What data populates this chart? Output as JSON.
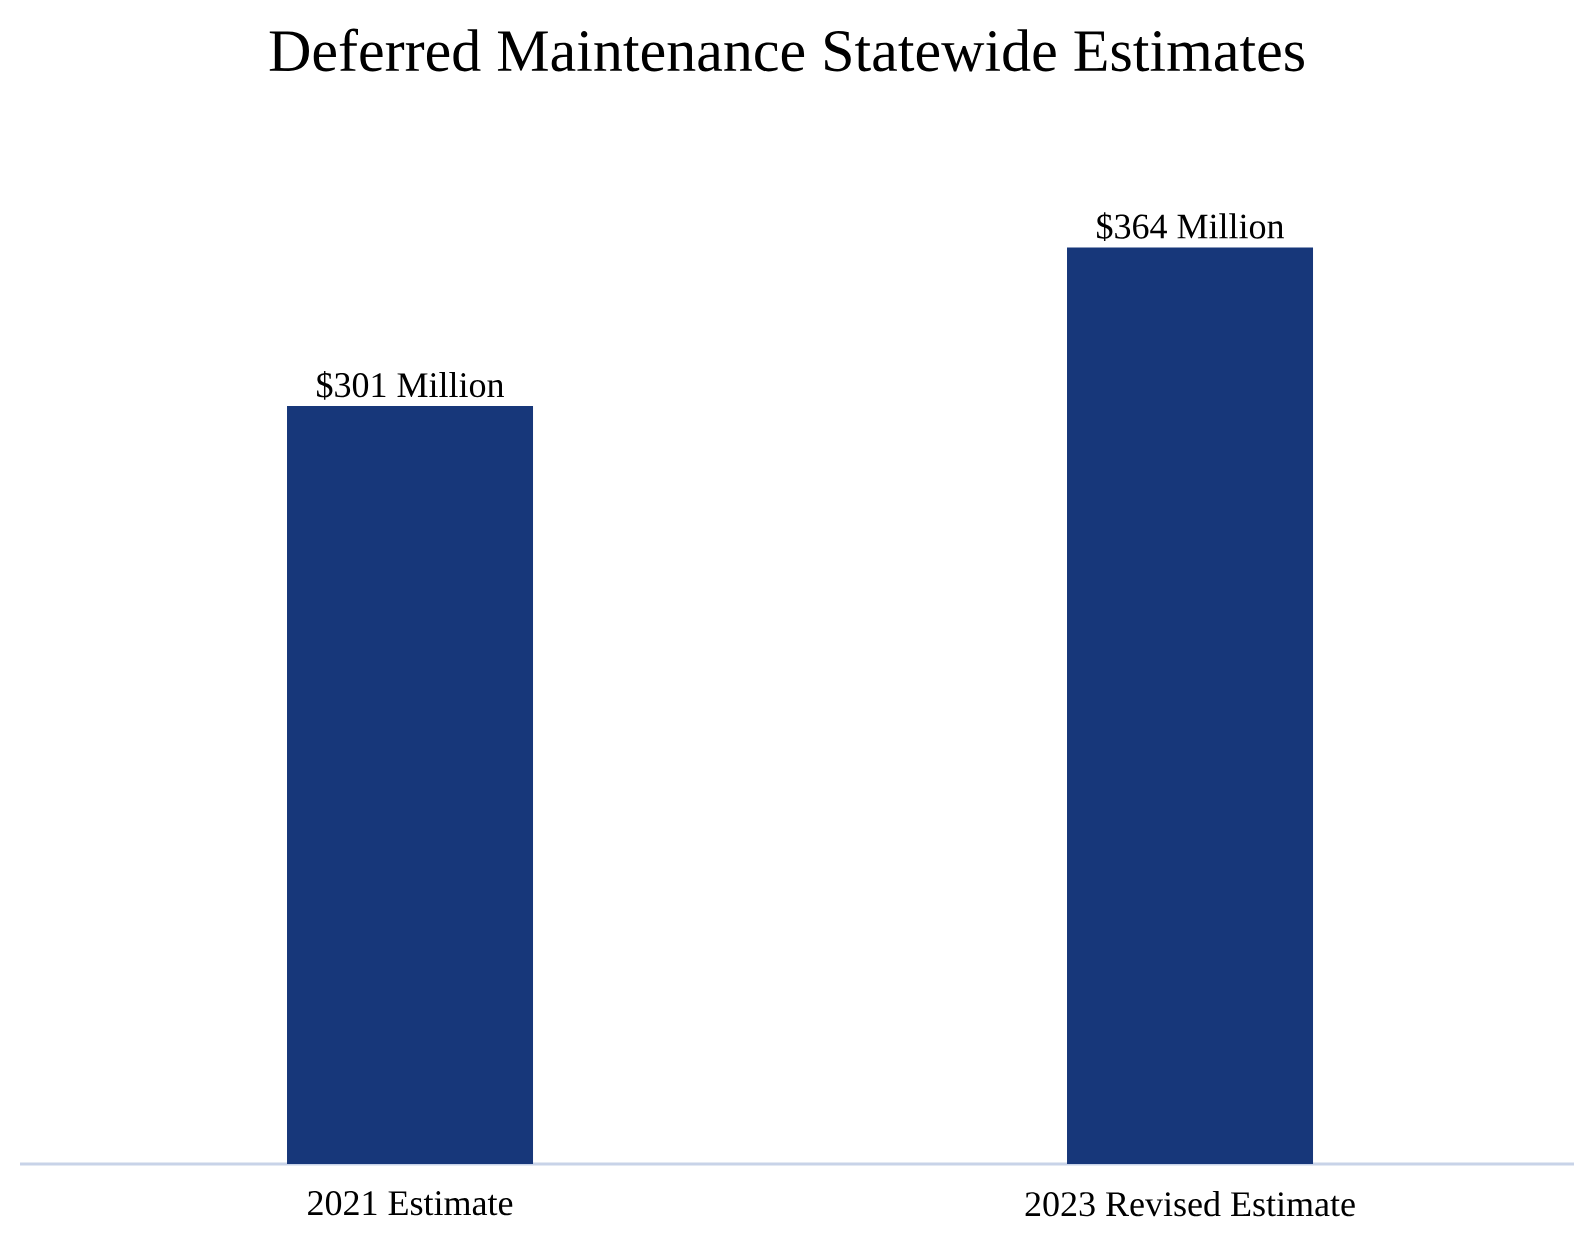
{
  "chart_data": {
    "type": "bar",
    "title": "Deferred Maintenance Statewide Estimates",
    "categories": [
      "2021 Estimate",
      "2023 Revised Estimate"
    ],
    "values": [
      301,
      364
    ],
    "value_labels": [
      "$301 Million",
      "$364 Million"
    ],
    "color": "#17377a"
  }
}
